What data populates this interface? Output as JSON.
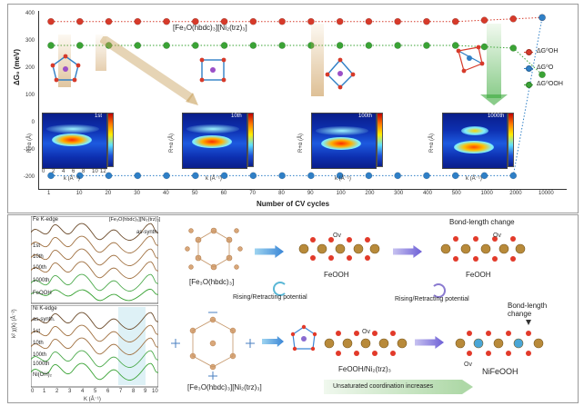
{
  "top": {
    "legend_title": "[Fe₃O(hbdc)₃][Ni₂(trz)₃]",
    "ylabel": "ΔG₀ (meV)",
    "xlabel": "Number of CV cycles",
    "y_ticks": [
      "400",
      "300",
      "200",
      "100",
      "0",
      "-100",
      "-200"
    ],
    "x_ticks": [
      "1",
      "10",
      "20",
      "30",
      "40",
      "50",
      "60",
      "70",
      "80",
      "90",
      "100",
      "200",
      "300",
      "400",
      "500",
      "1000",
      "2000",
      "10000"
    ],
    "legend": [
      "ΔG⁰OH",
      "ΔG⁰O",
      "ΔG⁰OOH"
    ],
    "wavelet_panels": [
      {
        "corner": "1st",
        "ylabel": "R+α (Å)",
        "xlabel": "k (Å⁻¹)"
      },
      {
        "corner": "10th",
        "ylabel": "R+α (Å)",
        "xlabel": "k (Å⁻¹)"
      },
      {
        "corner": "100th",
        "ylabel": "R+α (Å)",
        "xlabel": "k (Å⁻¹)"
      },
      {
        "corner": "1000th",
        "ylabel": "R+α (Å)",
        "xlabel": "k (Å⁻¹)"
      }
    ],
    "wavelet_k_ticks": [
      "0",
      "2",
      "4",
      "6",
      "8",
      "10",
      "12"
    ],
    "wavelet_r_ticks": [
      "4",
      "3",
      "2",
      "1",
      "0"
    ],
    "colors": {
      "oh": "#d63a2a",
      "o": "#2f7fc6",
      "ooh": "#3aa335"
    }
  },
  "chart_data": {
    "type": "scatter",
    "x": [
      "1",
      "10",
      "20",
      "30",
      "40",
      "50",
      "60",
      "70",
      "80",
      "90",
      "100",
      "200",
      "300",
      "400",
      "500",
      "1000",
      "2000",
      "10000"
    ],
    "series": [
      {
        "name": "ΔG⁰OH",
        "values": [
          380,
          380,
          380,
          380,
          380,
          380,
          380,
          380,
          380,
          380,
          380,
          380,
          380,
          380,
          380,
          385,
          390,
          395
        ]
      },
      {
        "name": "ΔG⁰O",
        "values": [
          -200,
          -200,
          -200,
          -200,
          -200,
          -200,
          -200,
          -200,
          -200,
          -200,
          -200,
          -200,
          -200,
          -200,
          -200,
          -200,
          -200,
          395
        ]
      },
      {
        "name": "ΔG⁰OOH",
        "values": [
          290,
          290,
          290,
          290,
          290,
          290,
          290,
          290,
          290,
          290,
          290,
          290,
          290,
          290,
          290,
          285,
          280,
          180
        ]
      }
    ],
    "ylabel": "ΔG⁰ (meV)",
    "xlabel": "Number of CV cycles",
    "ylim": [
      -250,
      420
    ]
  },
  "exafs": {
    "fe_title": "Fe K-edge",
    "fe_sample": "[Fe₃O(hbdc)₃][Ni₂(trz)₃]",
    "fe_labels": [
      "as-synth.",
      "1st",
      "10th",
      "100th",
      "1000th",
      "FeOOH"
    ],
    "ni_title": "Ni K-edge",
    "ni_labels": [
      "as-synth.",
      "1st",
      "10th",
      "100th",
      "1000th",
      "Ni(OH)₂"
    ],
    "ylabel": "k² χ(k) (Å⁻²)",
    "xlabel": "K (Å⁻¹)",
    "x_ticks": [
      "0",
      "1",
      "2",
      "3",
      "4",
      "5",
      "6",
      "7",
      "8",
      "9",
      "10"
    ]
  },
  "scheme": {
    "mof1": "[Fe₃O(hbdc)₃]",
    "mof2": "[Fe₃O(hbdc)₃][Ni₂(trz)₃]",
    "ov": "Ov",
    "feooh1": "FeOOH",
    "feooh2": "FeOOH",
    "feooh_ni": "FeOOH/Ni₂(trz)₃",
    "niFeOOH": "NiFeOOH",
    "bond1": "Bond-length change",
    "bond2": "Bond-length change",
    "rising1": "Rising/Retracting potential",
    "rising2": "Rising/Retracting potential",
    "unsat": "Unsaturated coordination increases"
  }
}
